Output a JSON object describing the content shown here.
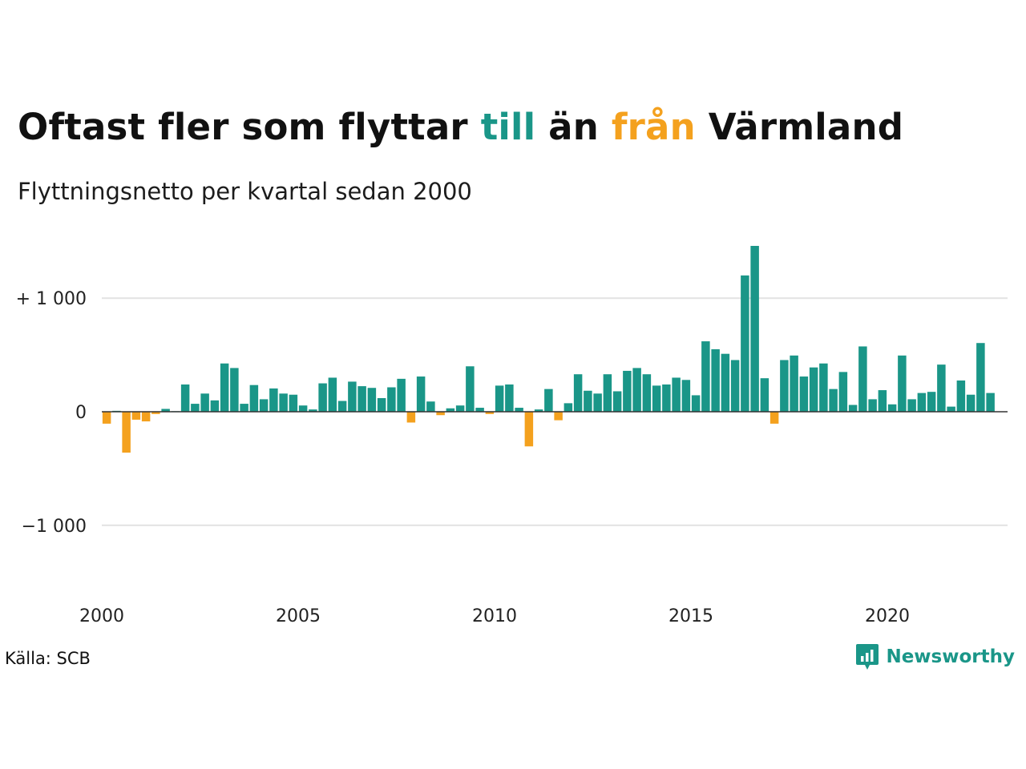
{
  "title": {
    "part1": "Oftast fler som flyttar ",
    "highlight_till": "till",
    "part2": " än ",
    "highlight_fran": "från",
    "part3": " Värmland"
  },
  "subtitle": "Flyttningsnetto per kvartal sedan 2000",
  "source": "Källa: SCB",
  "brand": {
    "name": "Newsworthy",
    "icon": "newsworthy-logo-icon"
  },
  "colors": {
    "positive": "#1a9688",
    "negative": "#f4a11e",
    "grid": "#e2e2e2",
    "zero_line": "#333333",
    "text": "#111111"
  },
  "chart_data": {
    "type": "bar",
    "x_start_year": 2000,
    "period": "quarter",
    "ylim": [
      -1600,
      1500
    ],
    "y_ticks": [
      {
        "value": 1000,
        "label": "+ 1 000"
      },
      {
        "value": 0,
        "label": "0"
      },
      {
        "value": -1000,
        "label": "−1 000"
      }
    ],
    "x_ticks": [
      {
        "value": 2000,
        "label": "2000"
      },
      {
        "value": 2005,
        "label": "2005"
      },
      {
        "value": 2010,
        "label": "2010"
      },
      {
        "value": 2015,
        "label": "2015"
      },
      {
        "value": 2020,
        "label": "2020"
      }
    ],
    "grid": true,
    "series": [
      {
        "values": [
          -105,
          8,
          -360,
          -70,
          -85,
          -20,
          25,
          5,
          240,
          70,
          160,
          100,
          425,
          385,
          70,
          235,
          110,
          205,
          160,
          150,
          55,
          20,
          250,
          300,
          95,
          265,
          225,
          210,
          120,
          215,
          290,
          -95,
          310,
          90,
          -30,
          30,
          55,
          400,
          35,
          -20,
          230,
          240,
          35,
          -305,
          20,
          200,
          -75,
          75,
          330,
          185,
          160,
          330,
          180,
          360,
          385,
          330,
          230,
          240,
          300,
          280,
          145,
          620,
          550,
          510,
          455,
          1200,
          1460,
          295,
          -105,
          455,
          495,
          310,
          390,
          425,
          200,
          350,
          60,
          575,
          110,
          190,
          65,
          495,
          110,
          165,
          175,
          415,
          45,
          275,
          150,
          605,
          165
        ]
      }
    ]
  }
}
